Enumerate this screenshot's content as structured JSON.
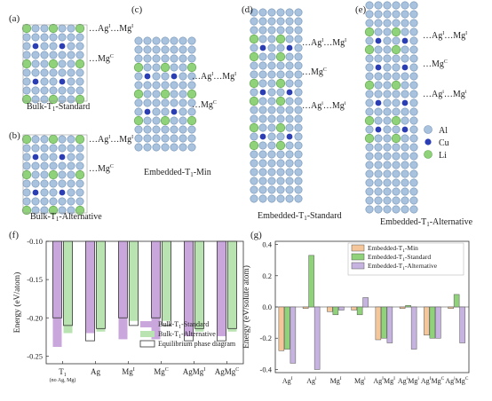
{
  "colors": {
    "al": "#a9c3de",
    "cu": "#2b3eb5",
    "li": "#8fd27a",
    "standard": "#c9a6dc",
    "alternative": "#b9e3b0",
    "eq": "#ffffff",
    "min": "#f4c69a",
    "g_standard": "#8fd27a",
    "g_alt": "#c6b3e0"
  },
  "panels": {
    "a": {
      "tag": "(a)",
      "caption": "Bulk-T",
      "sub": "1",
      "suffix": "-Standard",
      "lbl1": "…Ag",
      "lbl1a": "I",
      "lbl1b": "…Mg",
      "lbl1c": "I",
      "lbl2": "…Mg",
      "lbl2a": "C"
    },
    "b": {
      "tag": "(b)",
      "caption": "Bulk-T",
      "sub": "1",
      "suffix": "-Alternative",
      "lbl1": "…Ag",
      "lbl1a": "I",
      "lbl1b": "…Mg",
      "lbl1c": "I",
      "lbl2": "…Mg",
      "lbl2a": "C"
    },
    "c": {
      "tag": "(c)",
      "caption": "Embedded-T",
      "sub": "1",
      "suffix": "-Min",
      "lbl1": "…Ag",
      "lbl1a": "I",
      "lbl1b": "…Mg",
      "lbl1c": "I",
      "lbl2": "…Mg",
      "lbl2a": "C"
    },
    "d": {
      "tag": "(d)",
      "caption": "Embedded-T",
      "sub": "1",
      "suffix": "-Standard",
      "lbl1": "…Ag",
      "lbl1a": "I",
      "lbl1b": "…Mg",
      "lbl1c": "I",
      "lbl2": "…Mg",
      "lbl2a": "C",
      "lbl3": "…Ag",
      "lbl3a": "i",
      "lbl3b": "…Mg",
      "lbl3c": "i"
    },
    "e": {
      "tag": "(e)",
      "caption": "Embedded-T",
      "sub": "1",
      "suffix": "-Alternative",
      "lbl1": "…Ag",
      "lbl1a": "I",
      "lbl1b": "…Mg",
      "lbl1c": "I",
      "lbl2": "…Mg",
      "lbl2a": "C",
      "lbl3": "…Ag",
      "lbl3a": "i",
      "lbl3b": "…Mg",
      "lbl3c": "i"
    }
  },
  "legend_atoms": [
    {
      "label": "Al"
    },
    {
      "label": "Cu"
    },
    {
      "label": "Li"
    }
  ],
  "chart_data": [
    {
      "type": "bar",
      "tag": "(f)",
      "ylabel": "Energy (eV/atom)",
      "ylim": [
        -0.26,
        -0.1
      ],
      "yticks": [
        "-0.10",
        "-0.15",
        "-0.20",
        "-0.25"
      ],
      "categories": [
        "T",
        "Ag",
        "Mg",
        "Mg",
        "AgMg",
        "AgMg"
      ],
      "cat_sub": [
        "1",
        "",
        "",
        "",
        "",
        ""
      ],
      "cat_sup": [
        "",
        "",
        "I",
        "C",
        "I",
        "C"
      ],
      "cat_note": "(no Ag, Mg)",
      "series": [
        {
          "name": "Bulk-T",
          "name_sub": "1",
          "name_suffix": "-Standard",
          "values": [
            -0.238,
            -0.22,
            -0.228,
            -0.228,
            -0.224,
            -0.224
          ]
        },
        {
          "name": "Bulk-T",
          "name_sub": "1",
          "name_suffix": "-Alternative",
          "values": [
            -0.22,
            -0.218,
            -0.204,
            -0.204,
            -0.218,
            -0.218
          ]
        },
        {
          "name": "Equilibrium phase diagram",
          "name_sub": "",
          "name_suffix": "",
          "values": [
            -0.2,
            -0.23,
            -0.2,
            -0.2,
            -0.23,
            -0.23
          ]
        }
      ],
      "secondary_values": [
        -0.21,
        -0.214,
        -0.21,
        -0.21,
        -0.214,
        -0.214
      ]
    },
    {
      "type": "bar",
      "tag": "(g)",
      "ylabel": "Energy (eV/solute atom)",
      "ylim": [
        -0.42,
        0.42
      ],
      "yticks": [
        "0.4",
        "0.2",
        "0.0",
        "-0.2",
        "-0.4"
      ],
      "categories": [
        "Ag",
        "Ag",
        "Mg",
        "Mg",
        "Ag",
        "Ag",
        "Ag",
        "Ag"
      ],
      "cat_sup": [
        "I",
        "i",
        "I",
        "i",
        "I",
        "i",
        "I",
        "i"
      ],
      "cat_mid": [
        "",
        "",
        "",
        "",
        "Mg",
        "Mg",
        "Mg",
        "Mg"
      ],
      "cat_sup2": [
        "",
        "",
        "",
        "",
        "I",
        "i",
        "C",
        "C"
      ],
      "series": [
        {
          "name": "Embedded-T",
          "name_sub": "1",
          "name_suffix": "-Min",
          "values": [
            -0.28,
            -0.01,
            -0.03,
            -0.02,
            -0.21,
            -0.01,
            -0.18,
            -0.01
          ]
        },
        {
          "name": "Embedded-T",
          "name_sub": "1",
          "name_suffix": "-Standard",
          "values": [
            -0.27,
            0.33,
            -0.05,
            -0.05,
            -0.2,
            0.01,
            -0.2,
            0.08
          ]
        },
        {
          "name": "Embedded-T",
          "name_sub": "1",
          "name_suffix": "-Alternative",
          "values": [
            -0.36,
            -0.4,
            -0.02,
            0.06,
            -0.23,
            -0.27,
            -0.2,
            -0.23
          ]
        }
      ],
      "extra_small": [
        0,
        0,
        0,
        0.02,
        0,
        0,
        0,
        0
      ]
    }
  ]
}
